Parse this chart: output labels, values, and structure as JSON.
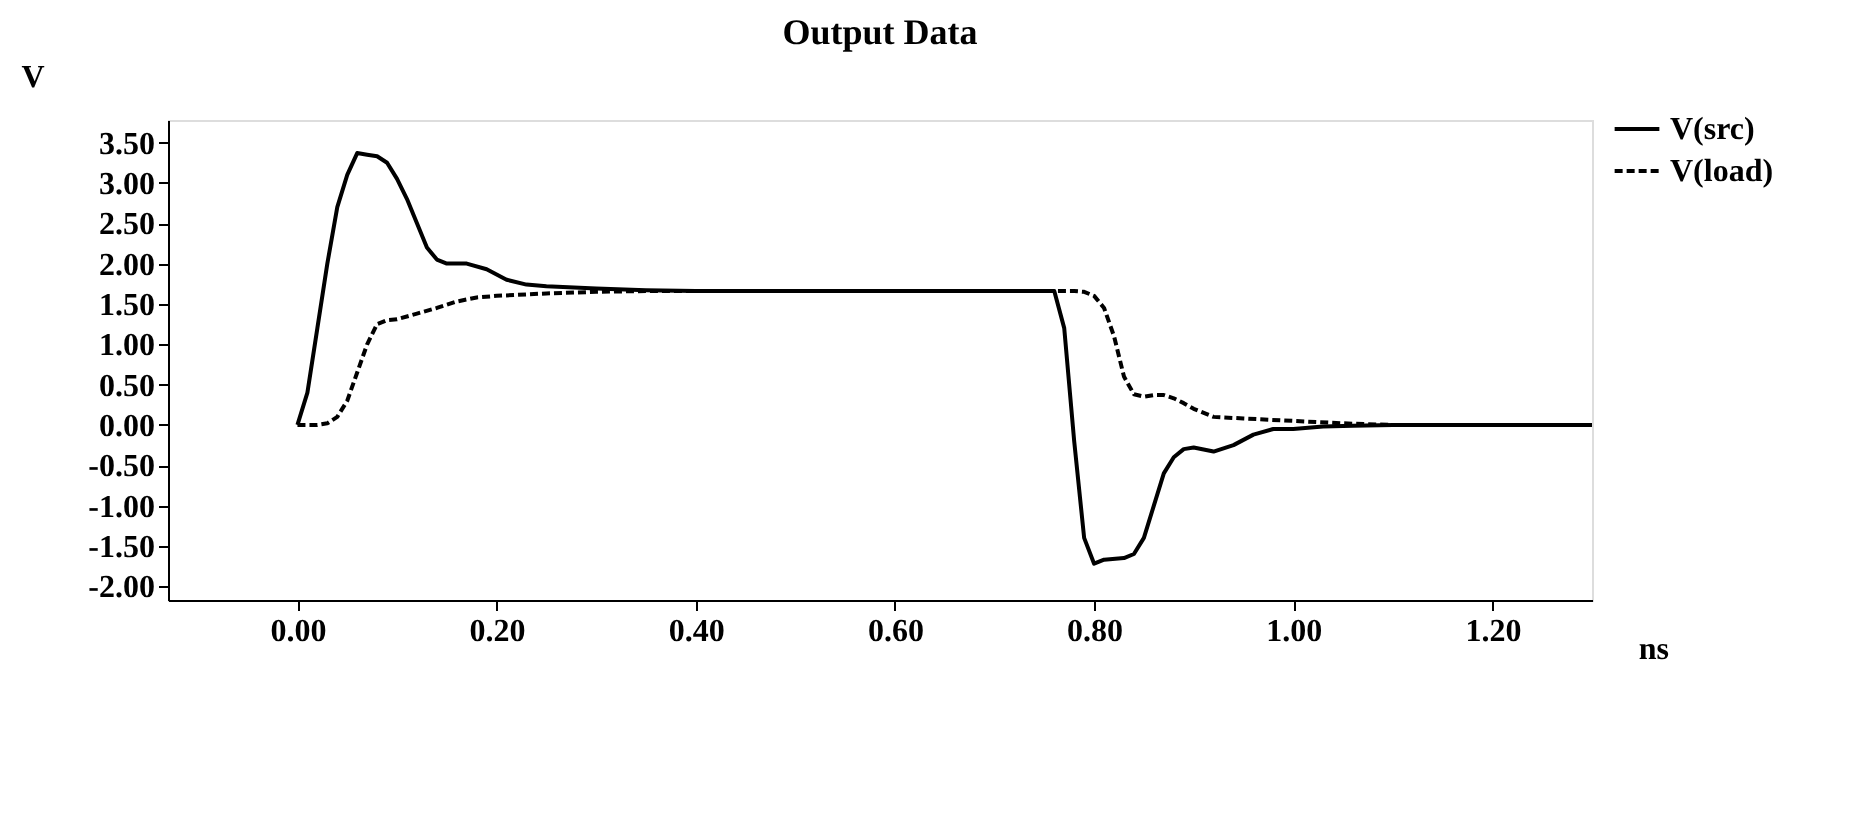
{
  "chart_data": {
    "type": "line",
    "title": "Output Data",
    "xlabel": "ns",
    "ylabel": "V",
    "xlim": [
      -0.13,
      1.3
    ],
    "xticks": [
      {
        "value": 0,
        "label": "0.00"
      },
      {
        "value": 0.2,
        "label": "0.20"
      },
      {
        "value": 0.4,
        "label": "0.40"
      },
      {
        "value": 0.6,
        "label": "0.60"
      },
      {
        "value": 0.8,
        "label": "0.80"
      },
      {
        "value": 1.0,
        "label": "1.00"
      },
      {
        "value": 1.2,
        "label": "1.20"
      }
    ],
    "ylim": [
      -2.17,
      3.78
    ],
    "yticks": [
      {
        "value": -2,
        "label": "-2.00"
      },
      {
        "value": -1.5,
        "label": "-1.50"
      },
      {
        "value": -1,
        "label": "-1.00"
      },
      {
        "value": -0.5,
        "label": "-0.50"
      },
      {
        "value": 0,
        "label": "0.00"
      },
      {
        "value": 0.5,
        "label": "0.50"
      },
      {
        "value": 1,
        "label": "1.00"
      },
      {
        "value": 1.5,
        "label": "1.50"
      },
      {
        "value": 2,
        "label": "2.00"
      },
      {
        "value": 2.5,
        "label": "2.50"
      },
      {
        "value": 3,
        "label": "3.00"
      },
      {
        "value": 3.5,
        "label": "3.50"
      }
    ],
    "grid": false,
    "legend": "top right",
    "marker": "none",
    "series": [
      {
        "name": "V(src)",
        "color": "#000000",
        "line_style": "solid",
        "x": [
          0,
          0.01,
          0.02,
          0.03,
          0.04,
          0.05,
          0.06,
          0.07,
          0.08,
          0.09,
          0.1,
          0.11,
          0.12,
          0.13,
          0.14,
          0.15,
          0.17,
          0.19,
          0.21,
          0.23,
          0.25,
          0.3,
          0.35,
          0.4,
          0.76,
          0.77,
          0.78,
          0.79,
          0.8,
          0.81,
          0.83,
          0.84,
          0.85,
          0.86,
          0.87,
          0.88,
          0.89,
          0.9,
          0.92,
          0.94,
          0.96,
          0.98,
          1.0,
          1.03,
          1.06,
          1.1,
          1.3
        ],
        "values": [
          0,
          0.4,
          1.2,
          2.0,
          2.7,
          3.1,
          3.37,
          3.35,
          3.33,
          3.25,
          3.05,
          2.8,
          2.5,
          2.2,
          2.05,
          2.0,
          2.0,
          1.93,
          1.8,
          1.74,
          1.72,
          1.69,
          1.67,
          1.66,
          1.66,
          1.2,
          -0.2,
          -1.4,
          -1.72,
          -1.67,
          -1.65,
          -1.6,
          -1.4,
          -1.0,
          -0.6,
          -0.4,
          -0.3,
          -0.28,
          -0.33,
          -0.25,
          -0.12,
          -0.05,
          -0.05,
          -0.02,
          -0.01,
          0,
          0
        ]
      },
      {
        "name": "V(load)",
        "color": "#000000",
        "line_style": "dashed",
        "x": [
          0,
          0.02,
          0.03,
          0.04,
          0.05,
          0.06,
          0.07,
          0.08,
          0.09,
          0.1,
          0.12,
          0.14,
          0.16,
          0.18,
          0.2,
          0.25,
          0.3,
          0.35,
          0.78,
          0.79,
          0.8,
          0.81,
          0.82,
          0.83,
          0.84,
          0.85,
          0.86,
          0.87,
          0.88,
          0.89,
          0.9,
          0.92,
          0.95,
          1.0,
          1.05,
          1.1,
          1.3
        ],
        "values": [
          0,
          0,
          0.02,
          0.1,
          0.3,
          0.65,
          1.0,
          1.25,
          1.3,
          1.31,
          1.38,
          1.45,
          1.53,
          1.58,
          1.6,
          1.63,
          1.65,
          1.66,
          1.66,
          1.65,
          1.6,
          1.45,
          1.1,
          0.6,
          0.38,
          0.35,
          0.37,
          0.37,
          0.33,
          0.27,
          0.2,
          0.1,
          0.08,
          0.05,
          0.02,
          0,
          0
        ]
      }
    ]
  }
}
